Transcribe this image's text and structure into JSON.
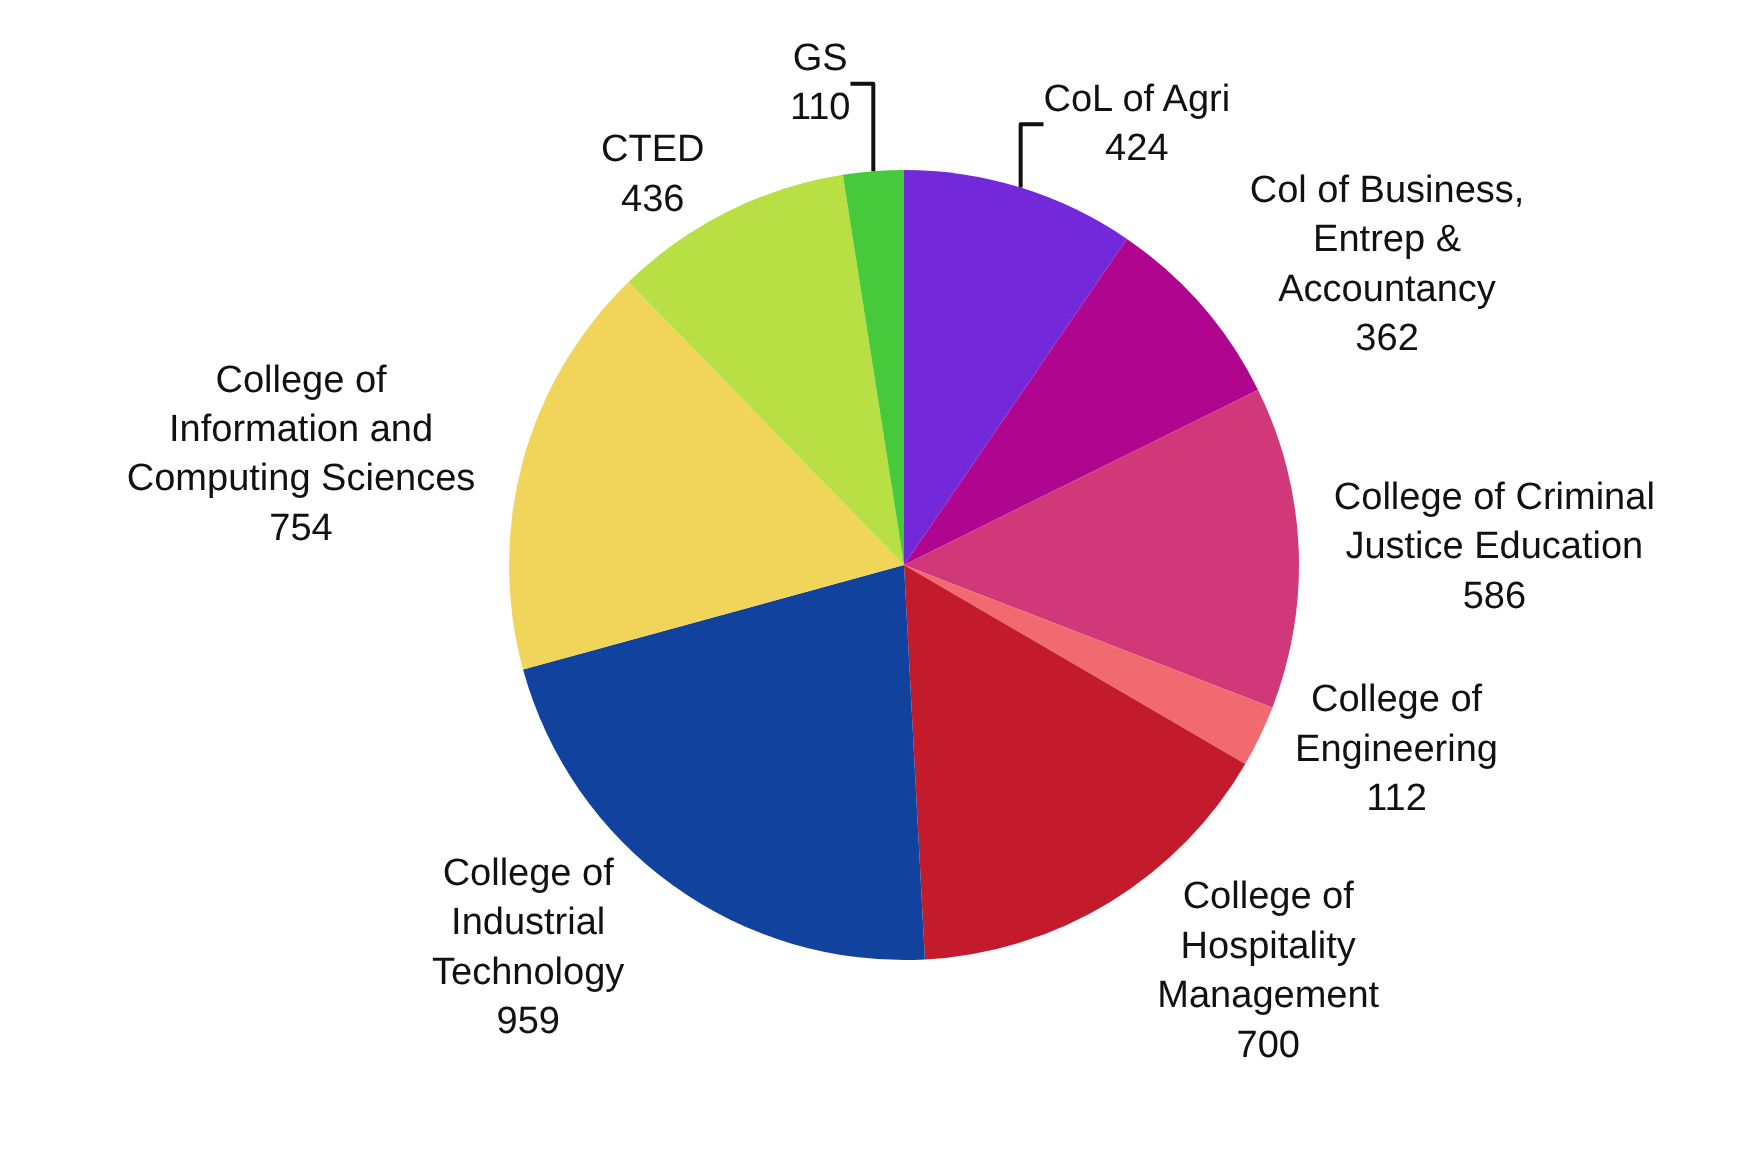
{
  "chart_data": {
    "type": "pie",
    "categories": [
      "CoL of Agri",
      "Col of Business, Entrep & Accountancy",
      "College of Criminal Justice Education",
      "College of Engineering",
      "College of Hospitality Management",
      "College of Industrial Technology",
      "College of Information and Computing Sciences",
      "CTED",
      "GS"
    ],
    "values": [
      424,
      362,
      586,
      112,
      700,
      959,
      754,
      436,
      110
    ],
    "colors": [
      "#7328d9",
      "#b0068f",
      "#d0387a",
      "#f06a70",
      "#c31a2c",
      "#11429e",
      "#f0d55a",
      "#b8e044",
      "#46c93a"
    ],
    "data_labels": true,
    "legend": false
  }
}
